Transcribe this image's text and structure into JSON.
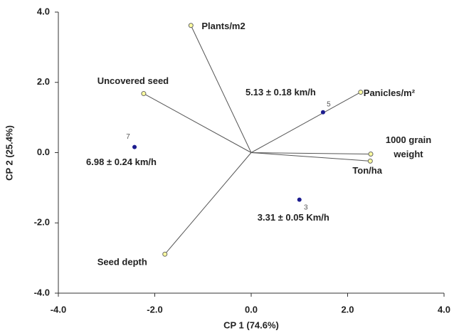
{
  "chart_data": {
    "type": "biplot",
    "xlabel": "CP 1 (74.6%)",
    "ylabel": "CP 2 (25.4%)",
    "xlim": [
      -4,
      4
    ],
    "ylim": [
      -4,
      4
    ],
    "xticks": [
      {
        "value": -4,
        "label": "-4.0"
      },
      {
        "value": -2,
        "label": "-2.0"
      },
      {
        "value": 0,
        "label": "0.0"
      },
      {
        "value": 2,
        "label": "2.0"
      },
      {
        "value": 4,
        "label": "4.0"
      }
    ],
    "yticks": [
      {
        "value": -4,
        "label": "-4.0"
      },
      {
        "value": -2,
        "label": "-2.0"
      },
      {
        "value": 0,
        "label": "0.0"
      },
      {
        "value": 2,
        "label": "2.0"
      },
      {
        "value": 4,
        "label": "4.0"
      }
    ],
    "vector_color": "#555555",
    "point_color": "#1c1c8f",
    "vectors": [
      {
        "label_lines": [
          "Plants/m2"
        ],
        "x": -1.25,
        "y": 3.62
      },
      {
        "label_lines": [
          "Uncovered seed"
        ],
        "x": -2.23,
        "y": 1.68
      },
      {
        "label_lines": [
          "Panicles/m²"
        ],
        "x": 2.27,
        "y": 1.72
      },
      {
        "label_lines": [
          "1000 grain",
          "weight"
        ],
        "x": 2.48,
        "y": -0.04
      },
      {
        "label_lines": [
          "Ton/ha"
        ],
        "x": 2.47,
        "y": -0.24
      },
      {
        "label_lines": [
          "Seed depth"
        ],
        "x": -1.79,
        "y": -2.89
      }
    ],
    "points": [
      {
        "id": "7",
        "annotation": "6.98 ± 0.24 km/h",
        "x": -2.42,
        "y": 0.16
      },
      {
        "id": "5",
        "annotation": "5.13 ± 0.18 km/h",
        "x": 1.49,
        "y": 1.15
      },
      {
        "id": "3",
        "annotation": "3.31 ± 0.05 Km/h",
        "x": 1.0,
        "y": -1.34
      }
    ]
  }
}
